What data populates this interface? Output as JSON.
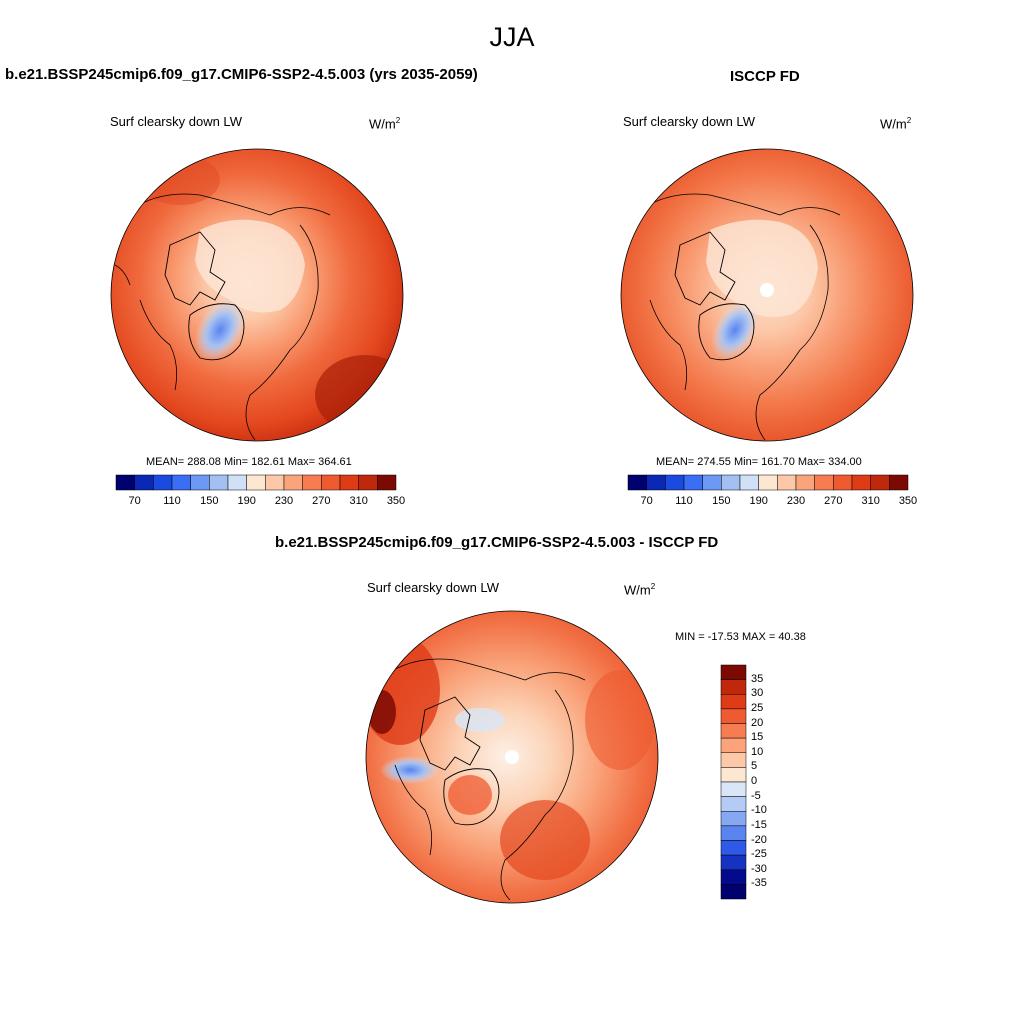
{
  "figure": {
    "season": "JJA",
    "panels": [
      {
        "id": "model",
        "title": "b.e21.BSSP245cmip6.f09_g17.CMIP6-SSP2-4.5.003 (yrs 2035-2059)",
        "variable": "Surf clearsky down LW",
        "units_base": "W/m",
        "units_exp": "2",
        "stats": "MEAN= 288.08  Min= 182.61  Max= 364.61"
      },
      {
        "id": "obs",
        "title": "ISCCP FD",
        "variable": "Surf clearsky down LW",
        "units_base": "W/m",
        "units_exp": "2",
        "stats": "MEAN= 274.55  Min= 161.70  Max= 334.00"
      },
      {
        "id": "diff",
        "title": "b.e21.BSSP245cmip6.f09_g17.CMIP6-SSP2-4.5.003 - ISCCP FD",
        "variable": "Surf clearsky down LW",
        "units_base": "W/m",
        "units_exp": "2",
        "stats": "MIN = -17.53 MAX =  40.38"
      }
    ],
    "colorbar_abs": {
      "tick_labels": [
        "70",
        "110",
        "150",
        "190",
        "230",
        "270",
        "310",
        "350"
      ],
      "colors": [
        "#00006e",
        "#0a27b5",
        "#1b4ae0",
        "#3b6ef5",
        "#6e98f5",
        "#a4c0f3",
        "#cfe0f7",
        "#fde6d2",
        "#fcc8a8",
        "#fba47b",
        "#f77c52",
        "#ef5a30",
        "#de3b17",
        "#c0280c",
        "#7c0a03"
      ]
    },
    "colorbar_diff": {
      "tick_labels": [
        "35",
        "30",
        "25",
        "20",
        "15",
        "10",
        "5",
        "0",
        "-5",
        "-10",
        "-15",
        "-20",
        "-25",
        "-30",
        "-35"
      ],
      "colors": [
        "#7c0a03",
        "#c0280c",
        "#de3b17",
        "#ef5a30",
        "#f77c52",
        "#fba47b",
        "#fcc8a8",
        "#fde6d2",
        "#d8e6f8",
        "#b3cbf5",
        "#86a8f3",
        "#5a84f0",
        "#2f5ae8",
        "#1632c2",
        "#040a8c",
        "#00006e"
      ]
    }
  }
}
